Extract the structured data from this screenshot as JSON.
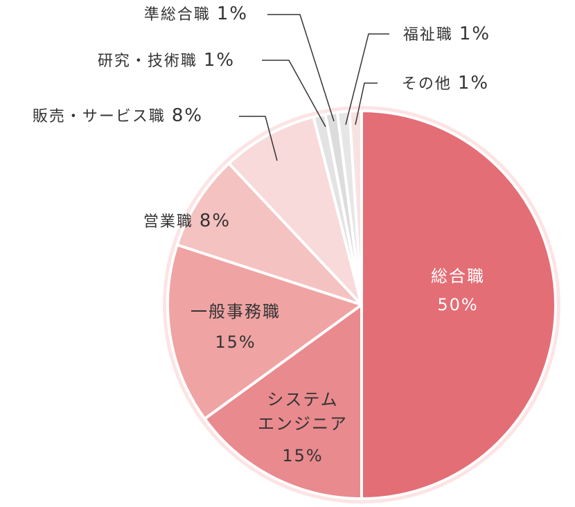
{
  "chart_data": {
    "type": "pie",
    "slices": [
      {
        "name": "総合職",
        "value": 50,
        "label": "50%",
        "color": "#e36e76",
        "label_color": "#ffffff"
      },
      {
        "name": "システムエンジニア",
        "value": 15,
        "label": "15%",
        "color": "#e98a8e",
        "label_color": "#333333"
      },
      {
        "name": "一般事務職",
        "value": 15,
        "label": "15%",
        "color": "#efa3a3",
        "label_color": "#333333"
      },
      {
        "name": "営業職",
        "value": 8,
        "label": "8%",
        "color": "#f4c2c0",
        "label_color": "#333333"
      },
      {
        "name": "販売・サービス職",
        "value": 8,
        "label": "8%",
        "color": "#f8dada",
        "label_color": "#333333"
      },
      {
        "name": "研究・技術職",
        "value": 1,
        "label": "1%",
        "color": "#e3e3e3",
        "label_color": "#333333"
      },
      {
        "name": "準総合職",
        "value": 1,
        "label": "1%",
        "color": "#dcdcdc",
        "label_color": "#333333"
      },
      {
        "name": "福祉職",
        "value": 1,
        "label": "1%",
        "color": "#e6e6e6",
        "label_color": "#333333"
      },
      {
        "name": "その他",
        "value": 1,
        "label": "1%",
        "color": "#f7e2e2",
        "label_color": "#333333"
      }
    ],
    "slice_display": {
      "システムエンジニア": [
        "システム",
        "エンジニア"
      ]
    },
    "border_color": "#fde4e4",
    "line_color": "#333333"
  }
}
